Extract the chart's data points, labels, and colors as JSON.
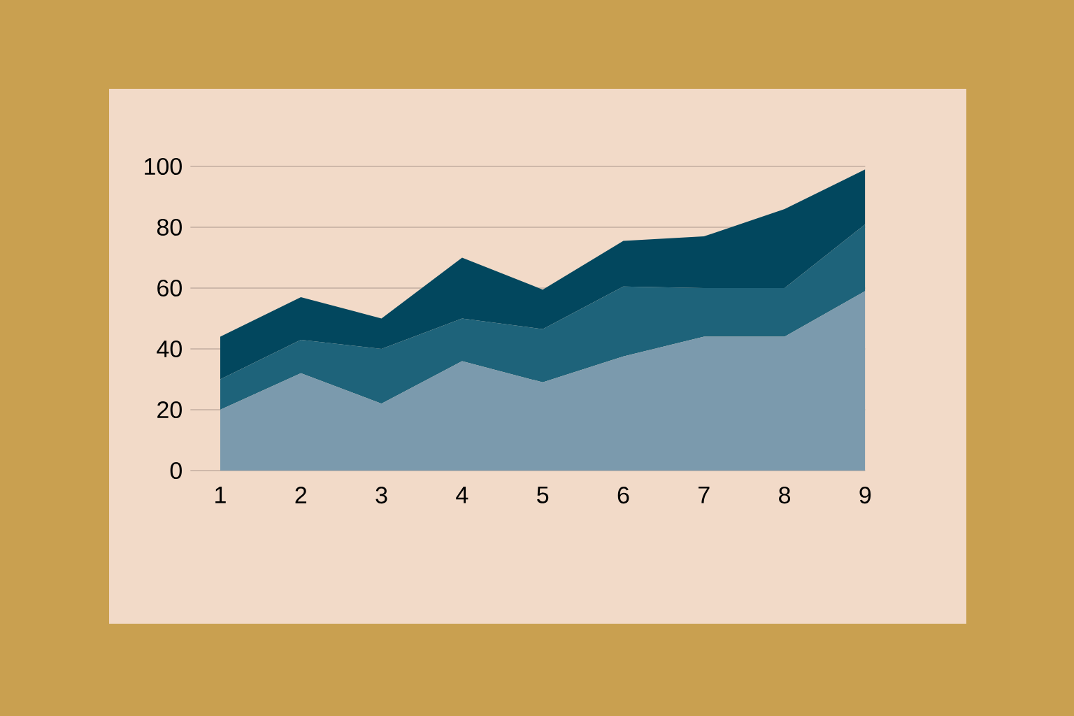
{
  "chart_data": {
    "type": "area",
    "stacked": true,
    "categories": [
      "1",
      "2",
      "3",
      "4",
      "5",
      "6",
      "7",
      "8",
      "9"
    ],
    "series": [
      {
        "color": "#7b9aad",
        "values": [
          20,
          32,
          22,
          36,
          29,
          37.5,
          44,
          44,
          59
        ]
      },
      {
        "color": "#1e637a",
        "values": [
          10,
          11,
          18,
          14,
          17.5,
          23,
          16,
          16,
          22
        ]
      },
      {
        "color": "#02475e",
        "values": [
          14,
          14,
          10,
          20,
          13,
          15,
          17,
          26,
          18
        ]
      }
    ],
    "ylim": [
      0,
      100
    ],
    "yticks": [
      0,
      20,
      40,
      60,
      80,
      100
    ],
    "grid": "y"
  }
}
